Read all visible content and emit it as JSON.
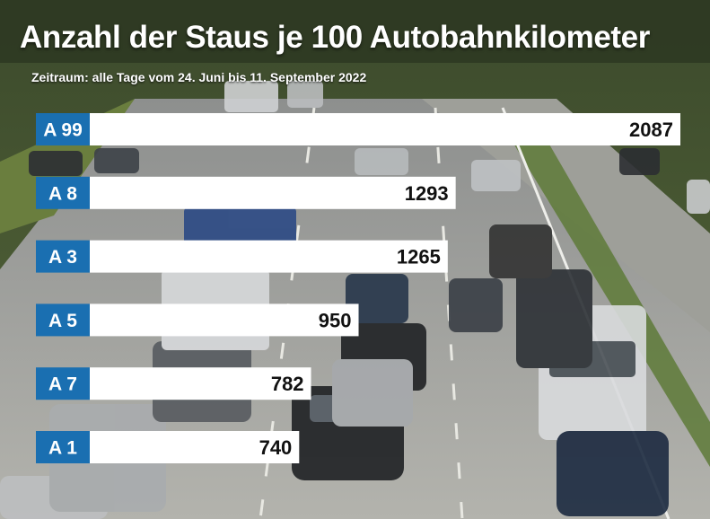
{
  "title": "Anzahl der Staus je 100 Autobahnkilometer",
  "subtitle": "Zeitraum: alle Tage vom 24. Juni bis 11. September 2022",
  "colors": {
    "label_bg": "#1a6fb1",
    "bar": "#ffffff",
    "value_text": "#111111",
    "label_text": "#ffffff"
  },
  "chart_data": {
    "type": "bar",
    "orientation": "horizontal",
    "categories": [
      "A 99",
      "A 8",
      "A 3",
      "A 5",
      "A 7",
      "A 1"
    ],
    "values": [
      2087,
      1293,
      1265,
      950,
      782,
      740
    ],
    "title": "Anzahl der Staus je 100 Autobahnkilometer",
    "subtitle": "Zeitraum: alle Tage vom 24. Juni bis 11. September 2022",
    "xlabel": "",
    "ylabel": "",
    "xlim": [
      0,
      2087
    ],
    "grid": false,
    "legend": "none"
  }
}
